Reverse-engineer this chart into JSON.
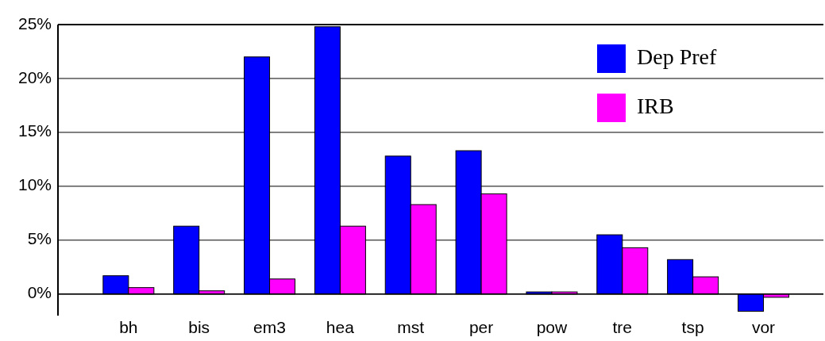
{
  "chart_data": {
    "type": "bar",
    "categories": [
      "bh",
      "bis",
      "em3",
      "hea",
      "mst",
      "per",
      "pow",
      "tre",
      "tsp",
      "vor"
    ],
    "series": [
      {
        "name": "Dep Pref",
        "color": "#0000ff",
        "values": [
          1.7,
          6.3,
          22.0,
          24.8,
          12.8,
          13.3,
          0.2,
          5.5,
          3.2,
          -1.6
        ]
      },
      {
        "name": "IRB",
        "color": "#ff00ff",
        "values": [
          0.6,
          0.3,
          1.4,
          6.3,
          8.3,
          9.3,
          0.2,
          4.3,
          1.6,
          -0.3
        ]
      }
    ],
    "ylim": [
      -2,
      25
    ],
    "yticks": [
      {
        "value": 0,
        "label": "0%"
      },
      {
        "value": 5,
        "label": "5%"
      },
      {
        "value": 10,
        "label": "10%"
      },
      {
        "value": 15,
        "label": "15%"
      },
      {
        "value": 20,
        "label": "20%"
      },
      {
        "value": 25,
        "label": "25%"
      }
    ],
    "grid": "y",
    "legend": "top right"
  }
}
